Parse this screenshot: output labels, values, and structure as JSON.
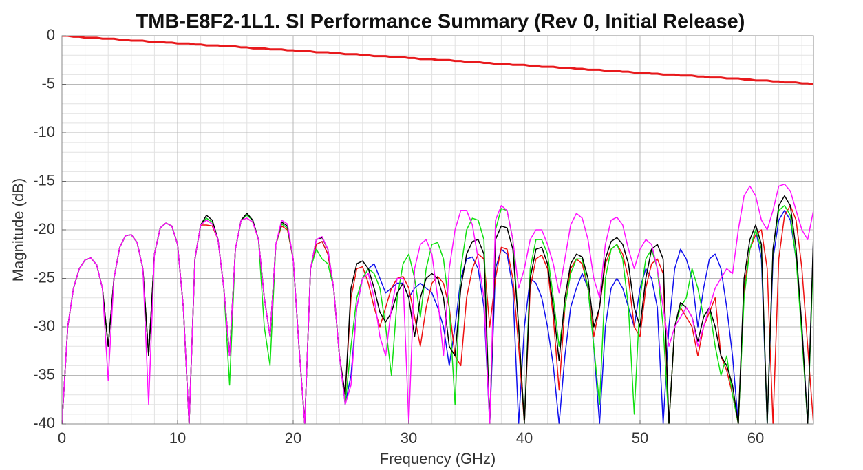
{
  "chart_data": {
    "type": "line",
    "title": "TMB-E8F2-1L1. SI Performance Summary (Rev 0, Initial Release)",
    "x_label": "Frequency (GHz)",
    "y_label": "Magnitude (dB)",
    "xlim": [
      0,
      65
    ],
    "ylim": [
      -40,
      0
    ],
    "xticks": [
      0,
      10,
      20,
      30,
      40,
      50,
      60
    ],
    "yticks": [
      0,
      -5,
      -10,
      -15,
      -20,
      -25,
      -30,
      -35,
      -40
    ],
    "grid": true,
    "x": [
      0,
      0.5,
      1,
      1.5,
      2,
      2.5,
      3,
      3.5,
      4,
      4.5,
      5,
      5.5,
      6,
      6.5,
      7,
      7.5,
      8,
      8.5,
      9,
      9.5,
      10,
      10.5,
      11,
      11.5,
      12,
      12.5,
      13,
      13.5,
      14,
      14.5,
      15,
      15.5,
      16,
      16.5,
      17,
      17.5,
      18,
      18.5,
      19,
      19.5,
      20,
      20.5,
      21,
      21.5,
      22,
      22.5,
      23,
      23.5,
      24,
      24.5,
      25,
      25.5,
      26,
      26.5,
      27,
      27.5,
      28,
      28.5,
      29,
      29.5,
      30,
      30.5,
      31,
      31.5,
      32,
      32.5,
      33,
      33.5,
      34,
      34.5,
      35,
      35.5,
      36,
      36.5,
      37,
      37.5,
      38,
      38.5,
      39,
      39.5,
      40,
      40.5,
      41,
      41.5,
      42,
      42.5,
      43,
      43.5,
      44,
      44.5,
      45,
      45.5,
      46,
      46.5,
      47,
      47.5,
      48,
      48.5,
      49,
      49.5,
      50,
      50.5,
      51,
      51.5,
      52,
      52.5,
      53,
      53.5,
      54,
      54.5,
      55,
      55.5,
      56,
      56.5,
      57,
      57.5,
      58,
      58.5,
      59,
      59.5,
      60,
      60.5,
      61,
      61.5,
      62,
      62.5,
      63,
      63.5,
      64,
      64.5,
      65
    ],
    "series": [
      {
        "color": "#e8191c",
        "width": 3,
        "values": [
          0,
          0,
          -0.1,
          -0.1,
          -0.2,
          -0.2,
          -0.2,
          -0.3,
          -0.3,
          -0.3,
          -0.4,
          -0.4,
          -0.5,
          -0.5,
          -0.5,
          -0.6,
          -0.6,
          -0.6,
          -0.7,
          -0.7,
          -0.8,
          -0.8,
          -0.8,
          -0.9,
          -0.9,
          -1.0,
          -1.0,
          -1.0,
          -1.1,
          -1.1,
          -1.1,
          -1.2,
          -1.2,
          -1.3,
          -1.3,
          -1.3,
          -1.4,
          -1.4,
          -1.4,
          -1.5,
          -1.5,
          -1.6,
          -1.6,
          -1.6,
          -1.7,
          -1.7,
          -1.7,
          -1.8,
          -1.8,
          -1.9,
          -1.9,
          -1.9,
          -2.0,
          -2.0,
          -2.1,
          -2.1,
          -2.1,
          -2.2,
          -2.2,
          -2.2,
          -2.3,
          -2.3,
          -2.4,
          -2.4,
          -2.4,
          -2.5,
          -2.5,
          -2.5,
          -2.6,
          -2.6,
          -2.7,
          -2.7,
          -2.7,
          -2.8,
          -2.8,
          -2.9,
          -2.9,
          -2.9,
          -3.0,
          -3.0,
          -3.0,
          -3.1,
          -3.1,
          -3.2,
          -3.2,
          -3.2,
          -3.3,
          -3.3,
          -3.3,
          -3.4,
          -3.4,
          -3.5,
          -3.5,
          -3.5,
          -3.6,
          -3.6,
          -3.6,
          -3.7,
          -3.7,
          -3.8,
          -3.8,
          -3.8,
          -3.9,
          -3.9,
          -4.0,
          -4.0,
          -4.0,
          -4.1,
          -4.1,
          -4.1,
          -4.2,
          -4.2,
          -4.3,
          -4.3,
          -4.3,
          -4.4,
          -4.4,
          -4.4,
          -4.5,
          -4.5,
          -4.6,
          -4.6,
          -4.6,
          -4.7,
          -4.7,
          -4.8,
          -4.8,
          -4.8,
          -4.9,
          -4.9,
          -5.0
        ]
      },
      {
        "color": "#1010ee",
        "width": 1.5,
        "values": [
          -40,
          -30,
          -26,
          -24,
          -23.1,
          -22.9,
          -23.6,
          -26,
          -32,
          -25,
          -21.8,
          -20.6,
          -20.5,
          -21.3,
          -24,
          -33,
          -22.5,
          -19.8,
          -19.3,
          -19.6,
          -21.5,
          -28,
          -40,
          -23,
          -19.5,
          -18.8,
          -19.2,
          -21,
          -26,
          -33,
          -22,
          -19,
          -18.5,
          -19,
          -21,
          -27,
          -31,
          -21.5,
          -19.4,
          -19.8,
          -23,
          -32,
          -40,
          -24,
          -21.5,
          -21.2,
          -22.5,
          -26,
          -33,
          -38,
          -35,
          -28,
          -25,
          -24,
          -23.5,
          -25,
          -26.5,
          -26,
          -25.5,
          -25.5,
          -27,
          -26,
          -25.5,
          -26,
          -26.5,
          -28,
          -30,
          -34,
          -30,
          -25,
          -23,
          -22.8,
          -24,
          -28,
          -40,
          -24,
          -22,
          -22.5,
          -26,
          -40,
          -30,
          -25,
          -25.5,
          -27,
          -30,
          -34,
          -40,
          -33,
          -28,
          -26,
          -24.5,
          -26,
          -32,
          -40,
          -30,
          -26,
          -25,
          -26,
          -28,
          -30,
          -26,
          -24,
          -25,
          -28,
          -40,
          -30,
          -24,
          -22,
          -23,
          -25,
          -30,
          -26,
          -23,
          -22.5,
          -24,
          -28,
          -33,
          -40,
          -26,
          -22,
          -20,
          -23,
          -40,
          -23,
          -19,
          -18,
          -19,
          -23,
          -30,
          -40,
          -21
        ]
      },
      {
        "color": "#ee1010",
        "width": 1.5,
        "values": [
          -40,
          -30,
          -26,
          -24,
          -23.1,
          -22.9,
          -23.6,
          -26,
          -32,
          -25,
          -21.8,
          -20.6,
          -20.5,
          -21.3,
          -24,
          -33,
          -22.5,
          -19.8,
          -19.3,
          -19.6,
          -21.5,
          -28,
          -40,
          -23,
          -19.5,
          -19.5,
          -19.6,
          -21,
          -26,
          -33,
          -22,
          -19,
          -18.8,
          -19.2,
          -21,
          -27,
          -31,
          -21.5,
          -19.6,
          -20,
          -23,
          -32,
          -40,
          -24,
          -21.5,
          -21.2,
          -22.5,
          -26,
          -33,
          -37,
          -27,
          -24,
          -23.8,
          -25.5,
          -28,
          -30,
          -28,
          -26,
          -25,
          -24.8,
          -26,
          -29,
          -32,
          -28,
          -25.5,
          -24.8,
          -25.5,
          -28,
          -33,
          -34,
          -27,
          -24,
          -22.5,
          -23,
          -30,
          -25,
          -21.8,
          -22,
          -25,
          -32,
          -40,
          -26,
          -23,
          -22.6,
          -24,
          -29,
          -36.5,
          -28,
          -24,
          -23,
          -23.5,
          -26,
          -31,
          -28,
          -23.5,
          -22,
          -21.5,
          -22.5,
          -25,
          -30,
          -31,
          -26,
          -23.5,
          -23,
          -24.5,
          -40,
          -30,
          -28,
          -29,
          -30,
          -33,
          -30,
          -28.5,
          -27,
          -33,
          -34.5,
          -37,
          -40,
          -26,
          -22,
          -20.5,
          -20,
          -24,
          -40,
          -23,
          -18.5,
          -17.5,
          -19,
          -24,
          -32,
          -40
        ]
      },
      {
        "color": "#10e010",
        "width": 1.5,
        "values": [
          -40,
          -30,
          -26,
          -24,
          -23.1,
          -22.9,
          -23.6,
          -26,
          -32,
          -25,
          -21.8,
          -20.6,
          -20.5,
          -21.3,
          -24,
          -33,
          -22.5,
          -19.8,
          -19.3,
          -19.6,
          -21.5,
          -28,
          -40,
          -23,
          -19.5,
          -18.8,
          -19.2,
          -21,
          -26,
          -36,
          -22,
          -19,
          -18.5,
          -19,
          -21,
          -30,
          -34,
          -21.5,
          -19.4,
          -19.8,
          -23,
          -32,
          -40,
          -24,
          -22,
          -23,
          -23.5,
          -26,
          -33,
          -38,
          -32,
          -27,
          -25,
          -24,
          -24.5,
          -26,
          -30,
          -35,
          -27,
          -23.5,
          -22.5,
          -25,
          -29,
          -24,
          -21.5,
          -21.3,
          -23,
          -28,
          -38,
          -24,
          -20,
          -18.8,
          -19,
          -21,
          -40,
          -20,
          -17.8,
          -18,
          -21,
          -30,
          -40,
          -24,
          -21,
          -21,
          -22.5,
          -27,
          -32,
          -28,
          -24.5,
          -23,
          -23,
          -26,
          -32,
          -38,
          -25,
          -22,
          -21.5,
          -23,
          -28,
          -39,
          -27,
          -23,
          -22,
          -24,
          -30,
          -40,
          -30,
          -28,
          -27,
          -24,
          -26,
          -29,
          -28,
          -32,
          -35,
          -33,
          -37,
          -40,
          -27,
          -22,
          -20,
          -22,
          -40,
          -22,
          -18,
          -17.5,
          -18.5,
          -23,
          -31,
          -40,
          -22
        ]
      },
      {
        "color": "#000000",
        "width": 1.5,
        "values": [
          -40,
          -30,
          -26,
          -24,
          -23.1,
          -22.9,
          -23.6,
          -26,
          -32,
          -25,
          -21.8,
          -20.6,
          -20.5,
          -21.3,
          -24,
          -33,
          -22.5,
          -19.8,
          -19.3,
          -19.6,
          -21.5,
          -28,
          -40,
          -23,
          -19.5,
          -18.5,
          -19,
          -21,
          -26,
          -33,
          -22,
          -19,
          -18.3,
          -19,
          -21,
          -27,
          -31,
          -21.5,
          -19.2,
          -19.6,
          -23,
          -32,
          -40,
          -24,
          -21,
          -20.8,
          -22,
          -26,
          -33,
          -37,
          -26,
          -23.5,
          -23.2,
          -24,
          -26,
          -28.5,
          -29.5,
          -28.5,
          -26.5,
          -25.5,
          -27,
          -31,
          -27,
          -25,
          -24.5,
          -25,
          -27,
          -32,
          -33,
          -26,
          -22.5,
          -21.2,
          -21,
          -22.5,
          -40,
          -21,
          -19.6,
          -19.8,
          -22,
          -30,
          -40,
          -25,
          -22,
          -21.8,
          -23.5,
          -28,
          -33.5,
          -27,
          -23.5,
          -22.5,
          -22.8,
          -25,
          -30,
          -28,
          -23,
          -21.2,
          -20.8,
          -21.5,
          -23.5,
          -28,
          -30,
          -25,
          -22,
          -21.5,
          -23,
          -40,
          -30,
          -27.5,
          -28,
          -29,
          -31.5,
          -29,
          -28,
          -30,
          -33,
          -34,
          -36,
          -40,
          -25,
          -21,
          -19.5,
          -21.5,
          -40,
          -22,
          -17.5,
          -16.5,
          -17.5,
          -22,
          -30,
          -40,
          -20.5
        ]
      },
      {
        "color": "#ff10ff",
        "width": 1.5,
        "values": [
          -40,
          -30,
          -26,
          -24,
          -23.1,
          -22.9,
          -23.6,
          -26,
          -35.5,
          -25,
          -21.8,
          -20.6,
          -20.5,
          -21.3,
          -24,
          -38,
          -22.5,
          -19.8,
          -19.3,
          -19.6,
          -21.5,
          -28,
          -40,
          -23,
          -19.5,
          -19,
          -19.4,
          -21,
          -26,
          -33,
          -22,
          -19,
          -18.8,
          -19.2,
          -21,
          -27,
          -31,
          -21.5,
          -19,
          -19.4,
          -23,
          -32,
          -40,
          -24,
          -21,
          -20.7,
          -22,
          -26,
          -33,
          -38,
          -36,
          -28,
          -25,
          -24.5,
          -27,
          -31,
          -33,
          -28,
          -25,
          -25,
          -40,
          -24,
          -21.5,
          -21,
          -22.5,
          -27,
          -33,
          -24,
          -20,
          -18,
          -18,
          -19.5,
          -23,
          -27,
          -40,
          -19,
          -17.5,
          -18,
          -21,
          -26,
          -24,
          -21,
          -20,
          -20,
          -21.5,
          -23.5,
          -26.5,
          -23,
          -19.5,
          -18.3,
          -18.8,
          -21,
          -25,
          -27,
          -21.5,
          -19,
          -18.7,
          -19.5,
          -22,
          -24,
          -22,
          -21,
          -21.5,
          -24,
          -28,
          -32,
          -30,
          -29,
          -28,
          -29,
          -32,
          -30,
          -28,
          -26,
          -25,
          -24,
          -24.5,
          -20,
          -16.5,
          -15.5,
          -16.5,
          -19,
          -20,
          -18,
          -15.5,
          -15.3,
          -16,
          -18,
          -20,
          -21,
          -18
        ]
      }
    ]
  }
}
